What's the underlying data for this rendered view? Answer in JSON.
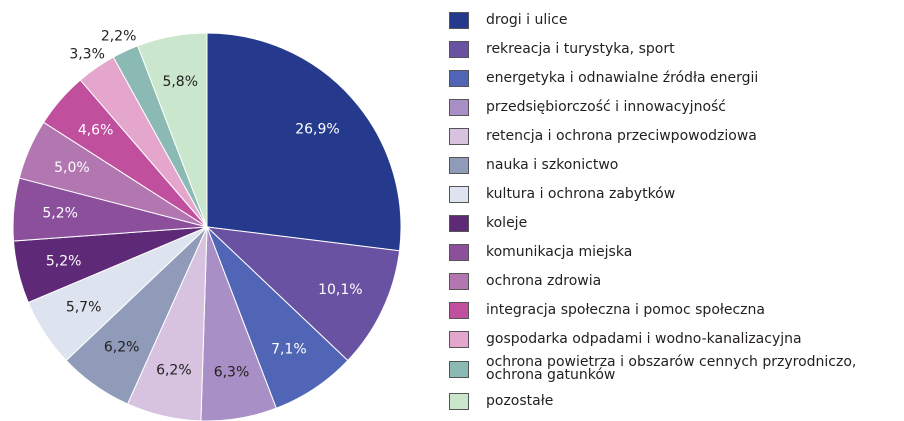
{
  "chart_data": {
    "type": "pie",
    "categories": [
      "drogi i ulice",
      "rekreacja i turystyka, sport",
      "energetyka i odnawialne źródła energii",
      "przedsiębiorczość i innowacyjność",
      "retencja i ochrona przeciwpowodziowa",
      "nauka i szkonictwo",
      "kultura i ochrona zabytków",
      "koleje",
      "komunikacja miejska",
      "ochrona zdrowia",
      "integracja społeczna i pomoc społeczna",
      "gospodarka odpadami i wodno-kanalizacyjna",
      "ochrona powietrza i obszarów cennych przyrodniczo,\nochrona gatunków",
      "pozostałe"
    ],
    "values": [
      26.9,
      10.1,
      7.1,
      6.3,
      6.2,
      6.2,
      5.7,
      5.2,
      5.2,
      5.0,
      4.6,
      3.3,
      2.2,
      5.8
    ],
    "value_labels": [
      "26,9%",
      "10,1%",
      "7,1%",
      "6,3%",
      "6,2%",
      "6,2%",
      "5,7%",
      "5,2%",
      "5,2%",
      "5,0%",
      "4,6%",
      "3,3%",
      "2,2%",
      "5,8%"
    ],
    "colors": [
      "#253a8c",
      "#6a52a3",
      "#5065b5",
      "#a88fc5",
      "#d7c3e0",
      "#8f9bb8",
      "#dde3ef",
      "#5e2a78",
      "#8b4f9c",
      "#b276b1",
      "#c04f9e",
      "#e4a6cc",
      "#8bbab5",
      "#cae6cc"
    ],
    "legend": "right"
  }
}
